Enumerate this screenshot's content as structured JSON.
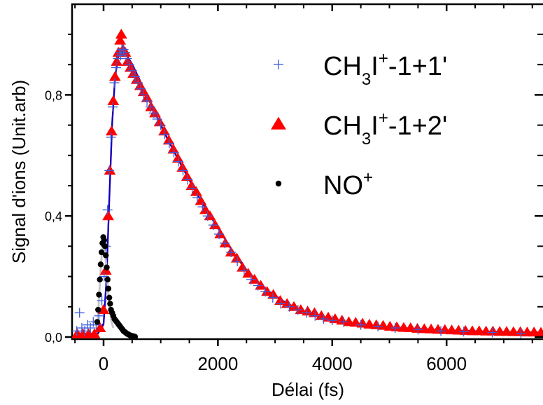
{
  "chart_data": {
    "type": "scatter",
    "title": "",
    "xlabel": "Délai (fs)",
    "ylabel": "Signal d'ions (Unit.arb)",
    "xlim": [
      -500,
      8000
    ],
    "ylim": [
      0,
      1.05
    ],
    "x_ticks": [
      {
        "value": 0,
        "label": "0"
      },
      {
        "value": 2000,
        "label": "2000"
      },
      {
        "value": 4000,
        "label": "4000"
      },
      {
        "value": 6000,
        "label": "6000"
      }
    ],
    "y_ticks": [
      {
        "value": 0.0,
        "label": "0,0"
      },
      {
        "value": 0.4,
        "label": "0,4"
      },
      {
        "value": 0.8,
        "label": "0,8"
      }
    ],
    "grid": false,
    "legend_position": "top-right",
    "series": [
      {
        "name": "CH3I+-1+1'",
        "marker": "plus",
        "color": "#3b5bdb",
        "points": [
          [
            -470,
            0.02
          ],
          [
            -420,
            0.08
          ],
          [
            -380,
            0.03
          ],
          [
            -330,
            0.02
          ],
          [
            -280,
            0.04
          ],
          [
            -230,
            0.03
          ],
          [
            -180,
            0.05
          ],
          [
            -130,
            0.04
          ],
          [
            -80,
            0.07
          ],
          [
            -30,
            0.12
          ],
          [
            10,
            0.2
          ],
          [
            40,
            0.3
          ],
          [
            70,
            0.42
          ],
          [
            100,
            0.55
          ],
          [
            130,
            0.66
          ],
          [
            160,
            0.76
          ],
          [
            190,
            0.84
          ],
          [
            220,
            0.89
          ],
          [
            250,
            0.92
          ],
          [
            280,
            0.94
          ],
          [
            300,
            0.93
          ],
          [
            320,
            0.95
          ],
          [
            350,
            0.95
          ],
          [
            380,
            0.94
          ],
          [
            410,
            0.92
          ],
          [
            450,
            0.9
          ],
          [
            500,
            0.88
          ],
          [
            550,
            0.86
          ],
          [
            600,
            0.84
          ],
          [
            650,
            0.82
          ],
          [
            700,
            0.8
          ],
          [
            760,
            0.78
          ],
          [
            820,
            0.76
          ],
          [
            880,
            0.74
          ],
          [
            940,
            0.72
          ],
          [
            1000,
            0.7
          ],
          [
            1070,
            0.67
          ],
          [
            1150,
            0.64
          ],
          [
            1230,
            0.61
          ],
          [
            1310,
            0.58
          ],
          [
            1390,
            0.55
          ],
          [
            1470,
            0.52
          ],
          [
            1550,
            0.49
          ],
          [
            1640,
            0.46
          ],
          [
            1730,
            0.43
          ],
          [
            1820,
            0.4
          ],
          [
            1920,
            0.37
          ],
          [
            2020,
            0.34
          ],
          [
            2120,
            0.31
          ],
          [
            2230,
            0.28
          ],
          [
            2340,
            0.25
          ],
          [
            2460,
            0.22
          ],
          [
            2580,
            0.19
          ],
          [
            2700,
            0.17
          ],
          [
            2830,
            0.15
          ],
          [
            2960,
            0.13
          ],
          [
            3100,
            0.11
          ],
          [
            3250,
            0.1
          ],
          [
            3400,
            0.09
          ],
          [
            3550,
            0.08
          ],
          [
            3700,
            0.07
          ],
          [
            3850,
            0.06
          ],
          [
            4000,
            0.055
          ],
          [
            4200,
            0.05
          ],
          [
            4500,
            0.04
          ],
          [
            4800,
            0.035
          ],
          [
            5100,
            0.03
          ],
          [
            5500,
            0.025
          ],
          [
            5900,
            0.02
          ],
          [
            6300,
            0.018
          ],
          [
            6800,
            0.015
          ],
          [
            7300,
            0.012
          ],
          [
            7800,
            0.01
          ]
        ]
      },
      {
        "name": "CH3I+-1+2'",
        "marker": "triangle",
        "color": "#ff0000",
        "points": [
          [
            -460,
            0.01
          ],
          [
            -360,
            0.01
          ],
          [
            -260,
            0.01
          ],
          [
            -160,
            0.01
          ],
          [
            -60,
            0.03
          ],
          [
            0,
            0.09
          ],
          [
            40,
            0.22
          ],
          [
            80,
            0.4
          ],
          [
            110,
            0.55
          ],
          [
            140,
            0.68
          ],
          [
            170,
            0.78
          ],
          [
            200,
            0.86
          ],
          [
            230,
            0.91
          ],
          [
            260,
            0.94
          ],
          [
            290,
            0.98
          ],
          [
            310,
            1.0
          ],
          [
            340,
            0.95
          ],
          [
            380,
            0.94
          ],
          [
            420,
            0.91
          ],
          [
            470,
            0.89
          ],
          [
            520,
            0.87
          ],
          [
            580,
            0.85
          ],
          [
            640,
            0.83
          ],
          [
            700,
            0.81
          ],
          [
            760,
            0.79
          ],
          [
            830,
            0.76
          ],
          [
            900,
            0.74
          ],
          [
            980,
            0.71
          ],
          [
            1060,
            0.68
          ],
          [
            1140,
            0.65
          ],
          [
            1220,
            0.62
          ],
          [
            1300,
            0.59
          ],
          [
            1380,
            0.56
          ],
          [
            1460,
            0.53
          ],
          [
            1540,
            0.5
          ],
          [
            1620,
            0.48
          ],
          [
            1700,
            0.45
          ],
          [
            1780,
            0.42
          ],
          [
            1860,
            0.4
          ],
          [
            1950,
            0.37
          ],
          [
            2040,
            0.34
          ],
          [
            2130,
            0.31
          ],
          [
            2230,
            0.28
          ],
          [
            2330,
            0.26
          ],
          [
            2430,
            0.23
          ],
          [
            2530,
            0.21
          ],
          [
            2640,
            0.19
          ],
          [
            2750,
            0.17
          ],
          [
            2860,
            0.15
          ],
          [
            2970,
            0.14
          ],
          [
            3090,
            0.12
          ],
          [
            3210,
            0.11
          ],
          [
            3330,
            0.1
          ],
          [
            3450,
            0.09
          ],
          [
            3570,
            0.085
          ],
          [
            3690,
            0.08
          ],
          [
            3810,
            0.07
          ],
          [
            3930,
            0.065
          ],
          [
            4050,
            0.06
          ],
          [
            4170,
            0.055
          ],
          [
            4290,
            0.05
          ],
          [
            4410,
            0.048
          ],
          [
            4530,
            0.045
          ],
          [
            4650,
            0.042
          ],
          [
            4770,
            0.04
          ],
          [
            4890,
            0.038
          ],
          [
            5010,
            0.035
          ],
          [
            5130,
            0.033
          ],
          [
            5250,
            0.031
          ],
          [
            5370,
            0.03
          ],
          [
            5490,
            0.028
          ],
          [
            5610,
            0.027
          ],
          [
            5730,
            0.026
          ],
          [
            5850,
            0.025
          ],
          [
            5970,
            0.024
          ],
          [
            6090,
            0.023
          ],
          [
            6210,
            0.022
          ],
          [
            6330,
            0.021
          ],
          [
            6450,
            0.02
          ],
          [
            6570,
            0.02
          ],
          [
            6690,
            0.019
          ],
          [
            6810,
            0.019
          ],
          [
            6930,
            0.018
          ],
          [
            7050,
            0.018
          ],
          [
            7170,
            0.017
          ],
          [
            7290,
            0.017
          ],
          [
            7410,
            0.016
          ],
          [
            7530,
            0.016
          ],
          [
            7650,
            0.015
          ],
          [
            7770,
            0.015
          ],
          [
            7890,
            0.015
          ]
        ]
      },
      {
        "name": "NO+",
        "marker": "circle",
        "color": "#000000",
        "points": [
          [
            -110,
            0.05
          ],
          [
            -95,
            0.09
          ],
          [
            -80,
            0.14
          ],
          [
            -65,
            0.19
          ],
          [
            -50,
            0.24
          ],
          [
            -35,
            0.28
          ],
          [
            -20,
            0.31
          ],
          [
            -5,
            0.33
          ],
          [
            10,
            0.32
          ],
          [
            25,
            0.3
          ],
          [
            40,
            0.27
          ],
          [
            55,
            0.23
          ],
          [
            70,
            0.19
          ],
          [
            85,
            0.16
          ],
          [
            100,
            0.13
          ],
          [
            115,
            0.11
          ],
          [
            130,
            0.09
          ],
          [
            150,
            0.08
          ],
          [
            170,
            0.07
          ],
          [
            190,
            0.06
          ],
          [
            210,
            0.055
          ],
          [
            230,
            0.05
          ],
          [
            250,
            0.045
          ],
          [
            270,
            0.04
          ],
          [
            290,
            0.035
          ],
          [
            310,
            0.03
          ],
          [
            330,
            0.025
          ],
          [
            350,
            0.02
          ],
          [
            370,
            0.017
          ],
          [
            390,
            0.014
          ],
          [
            410,
            0.011
          ],
          [
            430,
            0.009
          ],
          [
            450,
            0.007
          ],
          [
            470,
            0.005
          ],
          [
            490,
            0.004
          ],
          [
            510,
            0.003
          ],
          [
            530,
            0.002
          ],
          [
            550,
            0.001
          ]
        ]
      }
    ],
    "fit_lines": [
      {
        "color": "#ff0000",
        "points": [
          [
            -500,
            0.01
          ],
          [
            -100,
            0.01
          ],
          [
            0,
            0.04
          ],
          [
            50,
            0.18
          ],
          [
            100,
            0.45
          ],
          [
            150,
            0.7
          ],
          [
            200,
            0.85
          ],
          [
            250,
            0.92
          ],
          [
            300,
            0.945
          ],
          [
            350,
            0.945
          ],
          [
            400,
            0.93
          ],
          [
            500,
            0.9
          ],
          [
            700,
            0.82
          ],
          [
            900,
            0.74
          ],
          [
            1100,
            0.66
          ],
          [
            1300,
            0.59
          ],
          [
            1500,
            0.52
          ],
          [
            1700,
            0.45
          ],
          [
            1900,
            0.39
          ],
          [
            2100,
            0.33
          ],
          [
            2300,
            0.27
          ],
          [
            2500,
            0.22
          ],
          [
            2700,
            0.18
          ],
          [
            2900,
            0.15
          ],
          [
            3200,
            0.11
          ],
          [
            3500,
            0.085
          ],
          [
            3800,
            0.065
          ],
          [
            4200,
            0.05
          ],
          [
            4700,
            0.038
          ],
          [
            5200,
            0.03
          ],
          [
            6000,
            0.022
          ],
          [
            7000,
            0.017
          ],
          [
            8000,
            0.014
          ]
        ]
      },
      {
        "color": "#0000cc",
        "points": [
          [
            -500,
            0.01
          ],
          [
            -100,
            0.012
          ],
          [
            0,
            0.045
          ],
          [
            50,
            0.19
          ],
          [
            100,
            0.46
          ],
          [
            150,
            0.71
          ],
          [
            200,
            0.855
          ],
          [
            250,
            0.925
          ],
          [
            300,
            0.948
          ],
          [
            350,
            0.948
          ],
          [
            400,
            0.933
          ],
          [
            500,
            0.902
          ],
          [
            700,
            0.823
          ],
          [
            900,
            0.742
          ],
          [
            1100,
            0.662
          ],
          [
            1300,
            0.588
          ],
          [
            1500,
            0.518
          ],
          [
            1700,
            0.452
          ],
          [
            1900,
            0.39
          ],
          [
            2100,
            0.332
          ],
          [
            2300,
            0.272
          ],
          [
            2500,
            0.222
          ],
          [
            2700,
            0.182
          ],
          [
            2900,
            0.15
          ],
          [
            3200,
            0.112
          ],
          [
            3500,
            0.086
          ],
          [
            3800,
            0.066
          ],
          [
            4200,
            0.05
          ],
          [
            4700,
            0.038
          ],
          [
            5200,
            0.03
          ],
          [
            6000,
            0.022
          ],
          [
            7000,
            0.017
          ],
          [
            8000,
            0.014
          ]
        ]
      },
      {
        "color": "#c8c8c8",
        "points": [
          [
            -100,
            0.06
          ],
          [
            -70,
            0.16
          ],
          [
            -40,
            0.25
          ],
          [
            -15,
            0.305
          ],
          [
            0,
            0.31
          ],
          [
            20,
            0.29
          ],
          [
            50,
            0.23
          ],
          [
            80,
            0.15
          ],
          [
            110,
            0.09
          ],
          [
            140,
            0.05
          ],
          [
            170,
            0.03
          ]
        ]
      }
    ],
    "legend": [
      {
        "main": "CH",
        "sub": "3",
        "mid": "I",
        "sup": "+",
        "tail": "-1+1'",
        "marker": "plus",
        "color": "#3b5bdb"
      },
      {
        "main": "CH",
        "sub": "3",
        "mid": "I",
        "sup": "+",
        "tail": "-1+2'",
        "marker": "triangle",
        "color": "#ff0000"
      },
      {
        "main": "NO",
        "sub": "",
        "mid": "",
        "sup": "+",
        "tail": "",
        "marker": "circle",
        "color": "#000000"
      }
    ]
  }
}
